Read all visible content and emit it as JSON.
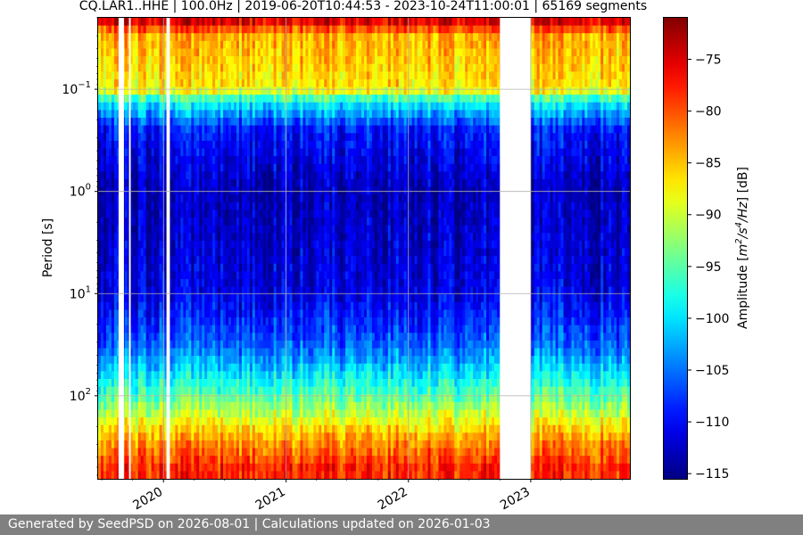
{
  "chart_data": {
    "type": "heatmap",
    "title": "CQ.LAR1..HHE | 100.0Hz | 2019-06-20T10:44:53 - 2023-10-24T11:00:01 | 65169 segments",
    "xlabel": "",
    "ylabel": "Period [s]",
    "y_scale": "log",
    "y_inverted": true,
    "y_range": [
      0.02,
      650
    ],
    "x_range": [
      "2019-06-20",
      "2023-10-24"
    ],
    "x_ticks": [
      {
        "value": "2020-01-01",
        "label": "2020"
      },
      {
        "value": "2021-01-01",
        "label": "2021"
      },
      {
        "value": "2022-01-01",
        "label": "2022"
      },
      {
        "value": "2023-01-01",
        "label": "2023"
      }
    ],
    "y_ticks": [
      {
        "value": 0.1,
        "label": "10",
        "exp": "−1"
      },
      {
        "value": 1,
        "label": "10",
        "exp": "0"
      },
      {
        "value": 10,
        "label": "10",
        "exp": "1"
      },
      {
        "value": 100,
        "label": "10",
        "exp": "2"
      }
    ],
    "grid": true,
    "colorbar": {
      "label": "Amplitude [m²/s⁴/Hz] [dB]",
      "label_main": "Amplitude [",
      "label_unit_base1": "m",
      "label_unit_exp1": "2",
      "label_unit_mid": "/s",
      "label_unit_exp2": "4",
      "label_unit_end": "/Hz",
      "label_tail": "] [dB]",
      "colormap": "jet",
      "range": [
        -115.5,
        -71
      ],
      "ticks": [
        -75,
        -80,
        -85,
        -90,
        -95,
        -100,
        -105,
        -110,
        -115
      ],
      "tick_labels": [
        "−75",
        "−80",
        "−85",
        "−90",
        "−95",
        "−100",
        "−105",
        "−110",
        "−115"
      ]
    },
    "data_gaps": [
      [
        "2019-08-20",
        "2019-09-05"
      ],
      [
        "2019-09-20",
        "2019-09-25"
      ],
      [
        "2020-01-10",
        "2020-01-20"
      ],
      [
        "2022-10-01",
        "2023-01-01"
      ]
    ],
    "amplitude_profile_db": [
      {
        "period_s": 0.02,
        "db": -73
      },
      {
        "period_s": 0.03,
        "db": -84
      },
      {
        "period_s": 0.1,
        "db": -87
      },
      {
        "period_s": 0.13,
        "db": -98
      },
      {
        "period_s": 0.25,
        "db": -109
      },
      {
        "period_s": 1,
        "db": -113
      },
      {
        "period_s": 10,
        "db": -111
      },
      {
        "period_s": 30,
        "db": -106
      },
      {
        "period_s": 60,
        "db": -100
      },
      {
        "period_s": 130,
        "db": -92
      },
      {
        "period_s": 250,
        "db": -84
      },
      {
        "period_s": 500,
        "db": -78
      }
    ]
  },
  "footer": {
    "text": "Generated by SeedPSD on 2026-08-01 | Calculations updated on 2026-01-03"
  }
}
